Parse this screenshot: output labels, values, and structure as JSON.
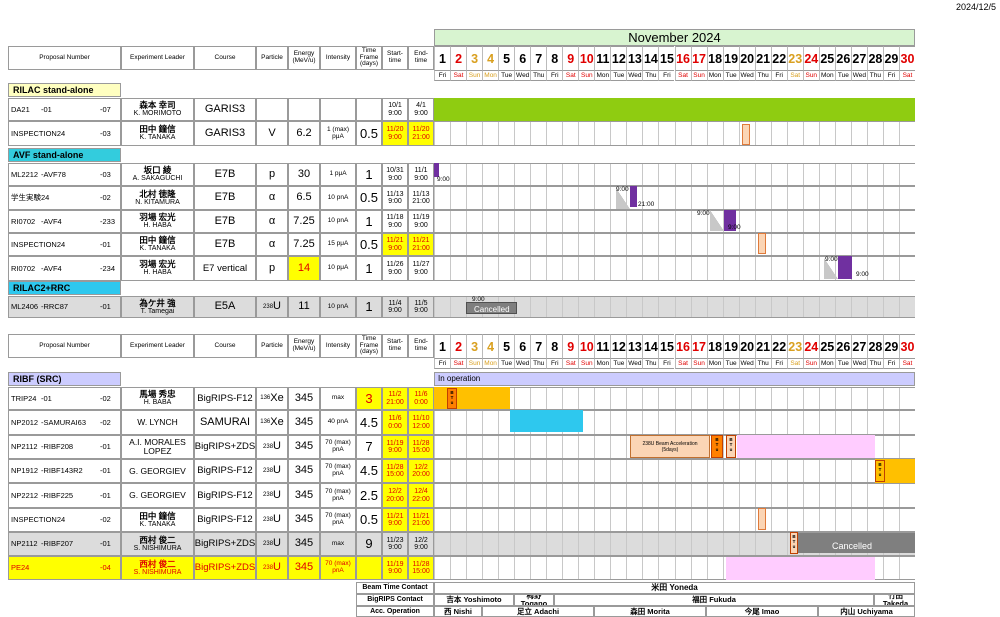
{
  "date_stamp": "2024/12/5",
  "month_title": "November 2024",
  "headers": {
    "proposal": "Proposal Number",
    "leader": "Experiment Leader",
    "course": "Course",
    "particle": "Particle",
    "energy": "Energy (MeV/u)",
    "intensity": "Intensity",
    "timeframe": "Time Frame (days)",
    "start": "Start-time",
    "end": "End-time"
  },
  "days": [
    "1",
    "2",
    "3",
    "4",
    "5",
    "6",
    "7",
    "8",
    "9",
    "10",
    "11",
    "12",
    "13",
    "14",
    "15",
    "16",
    "17",
    "18",
    "19",
    "20",
    "21",
    "22",
    "23",
    "24",
    "25",
    "26",
    "27",
    "28",
    "29",
    "30"
  ],
  "dows": [
    "Fri",
    "Sat",
    "Sun",
    "Mon",
    "Tue",
    "Wed",
    "Thu",
    "Fri",
    "Sat",
    "Sun",
    "Mon",
    "Tue",
    "Wed",
    "Thu",
    "Fri",
    "Sat",
    "Sun",
    "Mon",
    "Tue",
    "Wed",
    "Thu",
    "Fri",
    "Sat",
    "Sun",
    "Mon",
    "Tue",
    "Wed",
    "Thu",
    "Fri",
    "Sat"
  ],
  "day_colors": [
    "black",
    "red",
    "orange",
    "orange",
    "black",
    "black",
    "black",
    "black",
    "red",
    "red",
    "black",
    "black",
    "black",
    "black",
    "black",
    "red",
    "red",
    "black",
    "black",
    "black",
    "black",
    "black",
    "orange",
    "red",
    "black",
    "black",
    "black",
    "black",
    "black",
    "red"
  ],
  "colors": {
    "rilac_green": "#8fcc11",
    "purple": "#7030a0",
    "orange": "#ffc000",
    "cyan": "#2ec8ee",
    "pink": "#ffccff",
    "gray_row": "#dcdcdc",
    "highlight_yellow": "#ffff00",
    "section_yellow": "#ffffc0",
    "section_cyan": "#33ccdd",
    "section_lav": "#ccccff"
  },
  "sections": {
    "rilac": "RILAC stand-alone",
    "avf": "AVF stand-alone",
    "rilac2": "RILAC2+RRC",
    "ribf": "RIBF (SRC)"
  },
  "in_operation": "In operation",
  "top_rows": [
    {
      "p1": "DA21",
      "p2": "-01",
      "p3": "-07",
      "jp": "森本 幸司",
      "en": "K. MORIMOTO",
      "course": "GARIS3",
      "particle": "",
      "energy": "",
      "intensity": "",
      "tf": "",
      "s1": "10/1",
      "s2": "9:00",
      "e1": "4/1",
      "e2": "9:00"
    },
    {
      "p1": "INSPECTION24",
      "p2": "",
      "p3": "-03",
      "jp": "田中 鐘信",
      "en": "K. TANAKA",
      "course": "GARIS3",
      "particle": "V",
      "energy": "6.2",
      "intensity": "1 (max) pμA",
      "tf": "0.5",
      "s1": "11/20",
      "s2": "9:00",
      "e1": "11/20",
      "e2": "21:00"
    },
    {
      "p1": "ML2212",
      "p2": "-AVF78",
      "p3": "-03",
      "jp": "坂口 綾",
      "en": "A. SAKAGUCHI",
      "course": "E7B",
      "particle": "p",
      "energy": "30",
      "intensity": "1 pμA",
      "tf": "1",
      "s1": "10/31",
      "s2": "9:00",
      "e1": "11/1",
      "e2": "9:00"
    },
    {
      "p1": "学生実験24",
      "p2": "",
      "p3": "-02",
      "jp": "北村 徳隆",
      "en": "N. KITAMURA",
      "course": "E7B",
      "particle": "α",
      "energy": "6.5",
      "intensity": "10 pnA",
      "tf": "0.5",
      "s1": "11/13",
      "s2": "9:00",
      "e1": "11/13",
      "e2": "21:00"
    },
    {
      "p1": "RI0702",
      "p2": "-AVF4",
      "p3": "-233",
      "jp": "羽場 宏光",
      "en": "H. HABA",
      "course": "E7B",
      "particle": "α",
      "energy": "7.25",
      "intensity": "10 pnA",
      "tf": "1",
      "s1": "11/18",
      "s2": "9:00",
      "e1": "11/19",
      "e2": "9:00"
    },
    {
      "p1": "INSPECTION24",
      "p2": "",
      "p3": "-01",
      "jp": "田中 鐘信",
      "en": "K. TANAKA",
      "course": "E7B",
      "particle": "α",
      "energy": "7.25",
      "intensity": "15 pμA",
      "tf": "0.5",
      "s1": "11/21",
      "s2": "9:00",
      "e1": "11/21",
      "e2": "21:00"
    },
    {
      "p1": "RI0702",
      "p2": "-AVF4",
      "p3": "-234",
      "jp": "羽場 宏光",
      "en": "H. HABA",
      "course": "E7 vertical",
      "particle": "p",
      "energy": "14",
      "intensity": "10 pμA",
      "tf": "1",
      "s1": "11/26",
      "s2": "9:00",
      "e1": "11/27",
      "e2": "9:00"
    },
    {
      "p1": "ML2406",
      "p2": "-RRC87",
      "p3": "-01",
      "jp": "為ケ井 強",
      "en": "T. Tamegai",
      "course": "E5A",
      "particle": "238U",
      "pmass": "238",
      "pel": "U",
      "energy": "11",
      "intensity": "10 pnA",
      "tf": "1",
      "s1": "11/4",
      "s2": "9:00",
      "e1": "11/5",
      "e2": "9:00"
    }
  ],
  "bottom_rows": [
    {
      "p1": "TRIP24",
      "p2": "-01",
      "p3": "-02",
      "jp": "馬場 秀忠",
      "en": "H. BABA",
      "course": "BigRIPS-F12",
      "pmass": "136",
      "pel": "Xe",
      "energy": "345",
      "intensity": "max",
      "tf": "3",
      "s1": "11/2",
      "s2": "21:00",
      "e1": "11/6",
      "e2": "0:00"
    },
    {
      "p1": "NP2012",
      "p2": "-SAMURAI63",
      "p3": "-02",
      "jp": "",
      "en": "W. LYNCH",
      "course": "SAMURAI",
      "pmass": "136",
      "pel": "Xe",
      "energy": "345",
      "intensity": "40 pnA",
      "tf": "4.5",
      "s1": "11/6",
      "s2": "0:00",
      "e1": "11/10",
      "e2": "12:00"
    },
    {
      "p1": "NP2112",
      "p2": "-RIBF208",
      "p3": "-01",
      "jp": "",
      "en": "A.I. MORALES LOPEZ",
      "course": "BigRIPS+ZDS",
      "pmass": "238",
      "pel": "U",
      "energy": "345",
      "intensity": "70 (max) pnA",
      "tf": "7",
      "s1": "11/19",
      "s2": "9:00",
      "e1": "11/28",
      "e2": "15:00"
    },
    {
      "p1": "NP1912",
      "p2": "-RIBF143R2",
      "p3": "-01",
      "jp": "",
      "en": "G. GEORGIEV",
      "course": "BigRIPS-F12",
      "pmass": "238",
      "pel": "U",
      "energy": "345",
      "intensity": "70 (max) pnA",
      "tf": "4.5",
      "s1": "11/28",
      "s2": "15:00",
      "e1": "12/2",
      "e2": "20:00"
    },
    {
      "p1": "NP2212",
      "p2": "-RIBF225",
      "p3": "-01",
      "jp": "",
      "en": "G. GEORGIEV",
      "course": "BigRIPS-F12",
      "pmass": "238",
      "pel": "U",
      "energy": "345",
      "intensity": "70 (max) pnA",
      "tf": "2.5",
      "s1": "12/2",
      "s2": "20:00",
      "e1": "12/4",
      "e2": "22:00"
    },
    {
      "p1": "INSPECTION24",
      "p2": "",
      "p3": "-02",
      "jp": "田中 鐘信",
      "en": "K. TANAKA",
      "course": "BigRIPS-F12",
      "pmass": "238",
      "pel": "U",
      "energy": "345",
      "intensity": "70 (max) pnA",
      "tf": "0.5",
      "s1": "11/21",
      "s2": "9:00",
      "e1": "11/21",
      "e2": "21:00"
    },
    {
      "p1": "NP2112",
      "p2": "-RIBF207",
      "p3": "-01",
      "jp": "西村 俊二",
      "en": "S. NISHIMURA",
      "course": "BigRIPS+ZDS",
      "pmass": "238",
      "pel": "U",
      "energy": "345",
      "intensity": "max",
      "tf": "9",
      "s1": "11/23",
      "s2": "9:00",
      "e1": "12/2",
      "e2": "9:00"
    },
    {
      "p1": "PE24",
      "p2": "",
      "p3": "-04",
      "jp": "西村 俊二",
      "en": "S. NISHIMURA",
      "course": "BigRIPS+ZDS",
      "pmass": "238",
      "pel": "U",
      "energy": "345",
      "intensity": "70 (max) pnA",
      "tf": "",
      "s1": "11/19",
      "s2": "9:00",
      "e1": "11/28",
      "e2": "15:00"
    }
  ],
  "annotations": {
    "t900": "9:00",
    "t2100": "21:00",
    "cancelled": "Cancelled",
    "beam_accel_line1": "238U Beam Acceleration",
    "beam_accel_line2": "(5days)",
    "btu": "B T u"
  },
  "staff": {
    "bt_label": "Beam Time Contact",
    "bt_name": "米田 Yoneda",
    "br_label": "BigRIPS Contact",
    "br_names": [
      "吉本 Yoshimoto",
      "栂野 Togano",
      "福田 Fukuda",
      "竹田 Takeda"
    ],
    "acc_label": "Acc. Operation",
    "acc_names": [
      "西 Nishi",
      "足立 Adachi",
      "森田 Morita",
      "今尾 Imao",
      "内山 Uchiyama"
    ]
  }
}
